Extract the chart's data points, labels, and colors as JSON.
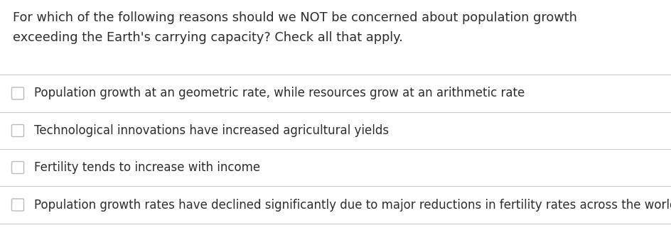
{
  "background_color": "#ffffff",
  "question_text_line1": "For which of the following reasons should we NOT be concerned about population growth",
  "question_text_line2": "exceeding the Earth's carrying capacity? Check all that apply.",
  "options": [
    "Population growth at an geometric rate, while resources grow at an arithmetic rate",
    "Technological innovations have increased agricultural yields",
    "Fertility tends to increase with income",
    "Population growth rates have declined significantly due to major reductions in fertility rates across the world"
  ],
  "text_color": "#2d2d2d",
  "question_fontsize": 12.8,
  "option_fontsize": 12.0,
  "separator_color": "#cccccc",
  "checkbox_edge_color": "#bbbbbb",
  "fig_width": 9.45,
  "fig_height": 3.31,
  "dpi": 100
}
